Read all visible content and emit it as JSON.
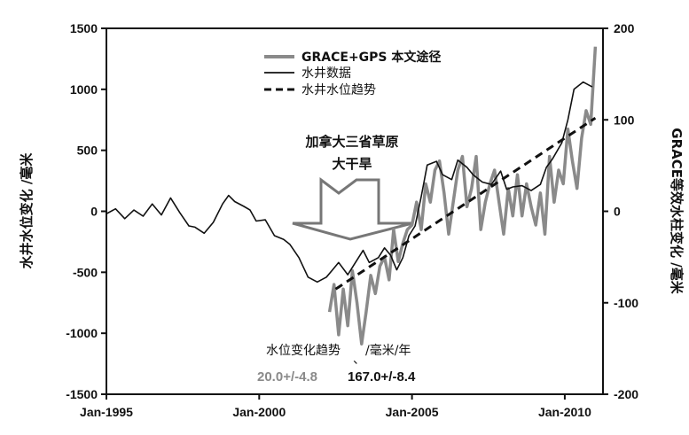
{
  "chart_data": {
    "type": "line",
    "x_ticks": [
      "Jan-1995",
      "Jan-2000",
      "Jan-2005",
      "Jan-2010"
    ],
    "left_axis": {
      "label": "水井水位变化 /毫米",
      "ylim": [
        -1500,
        1500
      ],
      "ticks": [
        -1500,
        -1000,
        -500,
        0,
        500,
        1000,
        1500
      ]
    },
    "right_axis": {
      "label": "GRACE等效水柱变化 /毫米",
      "ylim": [
        -200,
        200
      ],
      "ticks": [
        -200,
        -100,
        0,
        100,
        200
      ]
    },
    "legend": {
      "position": "top-center",
      "entries": [
        "GRACE+GPS 本文途径",
        "水井数据",
        "水井水位趋势"
      ]
    },
    "annotation": {
      "line1": "加拿大三省草原",
      "line2": "大干旱"
    },
    "rate": {
      "title": "水位变化趋势",
      "unit": "/毫米/年",
      "grace_value": "20.0+/-4.8",
      "well_value": "167.0+/-8.4",
      "separator": "、"
    },
    "colors": {
      "grace": "#8a8a8a",
      "well": "#111111",
      "trend": "#111111"
    },
    "series": [
      {
        "name": "水井数据",
        "axis": "left",
        "x": [
          1995.0,
          1995.3,
          1995.6,
          1995.9,
          1996.2,
          1996.5,
          1996.8,
          1997.1,
          1997.4,
          1997.7,
          1997.9,
          1998.2,
          1998.5,
          1998.8,
          1999.0,
          1999.2,
          1999.5,
          1999.7,
          1999.9,
          2000.2,
          2000.5,
          2000.8,
          2001.0,
          2001.3,
          2001.6,
          2001.9,
          2002.2,
          2002.4,
          2002.6,
          2002.9,
          2003.1,
          2003.4,
          2003.6,
          2003.9,
          2004.1,
          2004.3,
          2004.5,
          2004.7,
          2004.9,
          2005.1,
          2005.3,
          2005.5,
          2005.8,
          2006.0,
          2006.3,
          2006.5,
          2006.8,
          2007.0,
          2007.3,
          2007.6,
          2007.9,
          2008.1,
          2008.3,
          2008.6,
          2008.9,
          2009.2,
          2009.4,
          2009.6,
          2009.9,
          2010.1,
          2010.3,
          2010.6,
          2010.9
        ],
        "values": [
          -20,
          20,
          -60,
          10,
          -40,
          60,
          -30,
          110,
          -10,
          -120,
          -130,
          -180,
          -90,
          60,
          130,
          80,
          40,
          10,
          -80,
          -70,
          -200,
          -230,
          -270,
          -380,
          -540,
          -580,
          -540,
          -480,
          -420,
          -520,
          -440,
          -320,
          -420,
          -380,
          -300,
          -360,
          -480,
          -380,
          -200,
          -120,
          120,
          380,
          410,
          300,
          260,
          420,
          360,
          300,
          240,
          220,
          330,
          180,
          200,
          210,
          170,
          220,
          360,
          430,
          560,
          750,
          1000,
          1060,
          1020
        ]
      },
      {
        "name": "GRACE+GPS 本文途径",
        "axis": "right",
        "x": [
          2002.3,
          2002.45,
          2002.6,
          2002.75,
          2002.9,
          2003.05,
          2003.2,
          2003.35,
          2003.5,
          2003.65,
          2003.8,
          2003.95,
          2004.1,
          2004.25,
          2004.4,
          2004.55,
          2004.7,
          2004.85,
          2005.0,
          2005.15,
          2005.3,
          2005.45,
          2005.6,
          2005.75,
          2005.9,
          2006.05,
          2006.2,
          2006.35,
          2006.5,
          2006.65,
          2006.8,
          2006.95,
          2007.1,
          2007.25,
          2007.4,
          2007.55,
          2007.7,
          2007.85,
          2008.0,
          2008.15,
          2008.3,
          2008.45,
          2008.6,
          2008.75,
          2008.9,
          2009.05,
          2009.2,
          2009.35,
          2009.5,
          2009.65,
          2009.8,
          2009.95,
          2010.1,
          2010.25,
          2010.4,
          2010.55,
          2010.7,
          2010.85,
          2011.0
        ],
        "values": [
          -110,
          -80,
          -135,
          -85,
          -125,
          -65,
          -100,
          -145,
          -110,
          -70,
          -90,
          -60,
          -50,
          -75,
          -20,
          -55,
          -35,
          -20,
          -15,
          10,
          -20,
          30,
          10,
          45,
          55,
          20,
          -25,
          10,
          45,
          60,
          5,
          25,
          60,
          -20,
          10,
          30,
          45,
          10,
          -25,
          25,
          -5,
          40,
          -5,
          30,
          5,
          -15,
          20,
          -25,
          60,
          10,
          45,
          30,
          90,
          55,
          25,
          80,
          110,
          95,
          180
        ]
      },
      {
        "name": "水井水位趋势",
        "axis": "right",
        "x": [
          2002.5,
          2011.0
        ],
        "values": [
          -85,
          102
        ]
      }
    ]
  }
}
